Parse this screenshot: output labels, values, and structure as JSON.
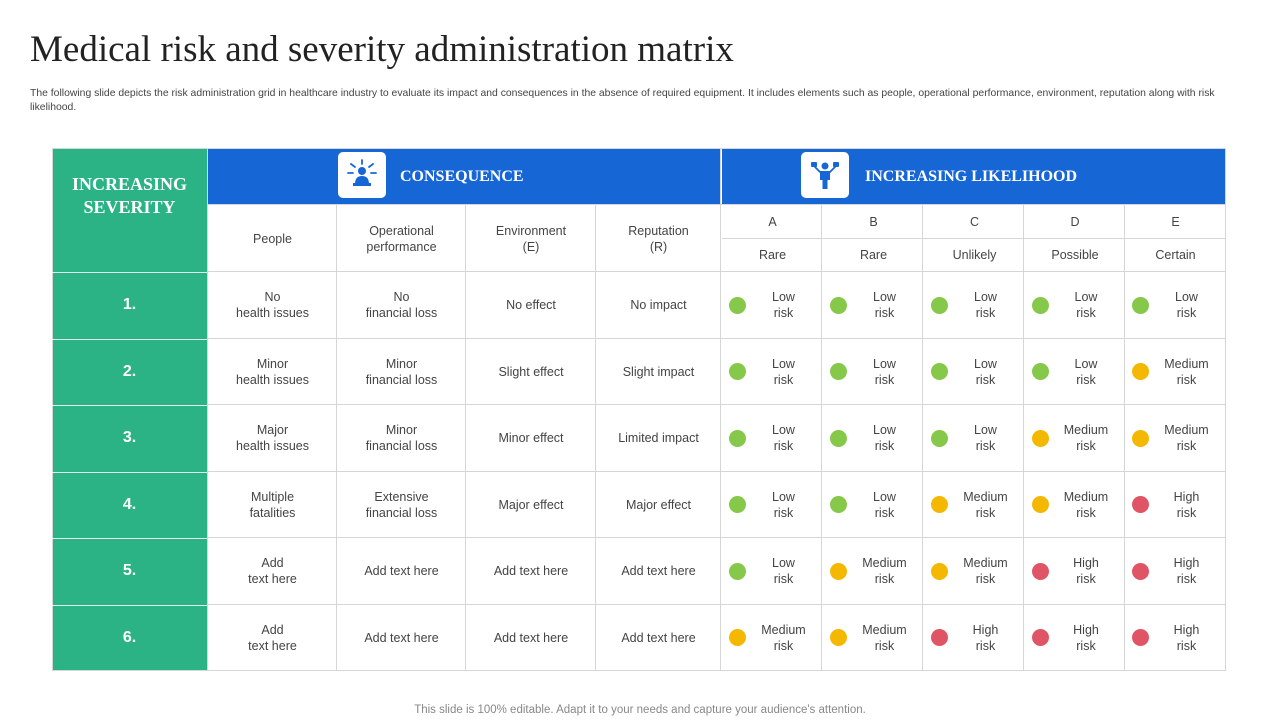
{
  "title": "Medical risk and severity administration matrix",
  "subtitle": "The following slide depicts the risk administration grid in healthcare industry to evaluate its impact and consequences in the absence of required equipment. It includes elements such as people, operational performance, environment, reputation along with risk likelihood.",
  "footer": "This slide is 100% editable. Adapt it to your needs and capture your audience's attention.",
  "colors": {
    "green_accent": "#2bb385",
    "blue_accent": "#1766d6",
    "low": "#86c84a",
    "medium": "#f5b800",
    "high": "#e05566"
  },
  "severity_header": [
    "INCREASING",
    "SEVERITY"
  ],
  "consequence": {
    "title": "CONSEQUENCE",
    "icon": "person-network-icon",
    "columns": [
      [
        "People"
      ],
      [
        "Operational",
        "performance"
      ],
      [
        "Environment",
        "(E)"
      ],
      [
        "Reputation",
        "(R)"
      ]
    ]
  },
  "likelihood": {
    "title": "INCREASING LIKELIHOOD",
    "icon": "person-decision-icon",
    "letters": [
      "A",
      "B",
      "C",
      "D",
      "E"
    ],
    "labels": [
      "Rare",
      "Rare",
      "Unlikely",
      "Possible",
      "Certain"
    ]
  },
  "rows": [
    {
      "num": "1.",
      "cells": [
        [
          "No",
          "health issues"
        ],
        [
          "No",
          "financial loss"
        ],
        [
          "No effect"
        ],
        [
          "No impact"
        ]
      ],
      "risks": [
        [
          "low",
          "Low",
          "risk"
        ],
        [
          "low",
          "Low",
          "risk"
        ],
        [
          "low",
          "Low",
          "risk"
        ],
        [
          "low",
          "Low",
          "risk"
        ],
        [
          "low",
          "Low",
          "risk"
        ]
      ]
    },
    {
      "num": "2.",
      "cells": [
        [
          "Minor",
          "health issues"
        ],
        [
          "Minor",
          "financial loss"
        ],
        [
          "Slight effect"
        ],
        [
          "Slight impact"
        ]
      ],
      "risks": [
        [
          "low",
          "Low",
          "risk"
        ],
        [
          "low",
          "Low",
          "risk"
        ],
        [
          "low",
          "Low",
          "risk"
        ],
        [
          "low",
          "Low",
          "risk"
        ],
        [
          "medium",
          "Medium",
          "risk"
        ]
      ]
    },
    {
      "num": "3.",
      "cells": [
        [
          "Major",
          "health issues"
        ],
        [
          "Minor",
          "financial loss"
        ],
        [
          "Minor effect"
        ],
        [
          "Limited impact"
        ]
      ],
      "risks": [
        [
          "low",
          "Low",
          "risk"
        ],
        [
          "low",
          "Low",
          "risk"
        ],
        [
          "low",
          "Low",
          "risk"
        ],
        [
          "medium",
          "Medium",
          "risk"
        ],
        [
          "medium",
          "Medium",
          "risk"
        ]
      ]
    },
    {
      "num": "4.",
      "cells": [
        [
          "Multiple",
          "fatalities"
        ],
        [
          "Extensive",
          "financial loss"
        ],
        [
          "Major effect"
        ],
        [
          "Major effect"
        ]
      ],
      "risks": [
        [
          "low",
          "Low",
          "risk"
        ],
        [
          "low",
          "Low",
          "risk"
        ],
        [
          "medium",
          "Medium",
          "risk"
        ],
        [
          "medium",
          "Medium",
          "risk"
        ],
        [
          "high",
          "High",
          "risk"
        ]
      ]
    },
    {
      "num": "5.",
      "cells": [
        [
          "Add",
          "text here"
        ],
        [
          "Add text here"
        ],
        [
          "Add text here"
        ],
        [
          "Add text here"
        ]
      ],
      "risks": [
        [
          "low",
          "Low",
          "risk"
        ],
        [
          "medium",
          "Medium",
          "risk"
        ],
        [
          "medium",
          "Medium",
          "risk"
        ],
        [
          "high",
          "High",
          "risk"
        ],
        [
          "high",
          "High",
          "risk"
        ]
      ]
    },
    {
      "num": "6.",
      "cells": [
        [
          "Add",
          "text here"
        ],
        [
          "Add text here"
        ],
        [
          "Add text here"
        ],
        [
          "Add text here"
        ]
      ],
      "risks": [
        [
          "medium",
          "Medium",
          "risk"
        ],
        [
          "medium",
          "Medium",
          "risk"
        ],
        [
          "high",
          "High",
          "risk"
        ],
        [
          "high",
          "High",
          "risk"
        ],
        [
          "high",
          "High",
          "risk"
        ]
      ]
    }
  ]
}
